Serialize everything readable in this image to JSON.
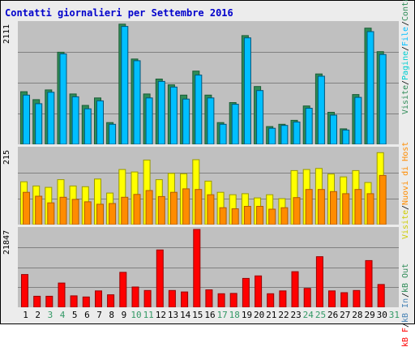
{
  "title": "Contatti giornalieri per Settembre 2016",
  "colors": {
    "title": "#0000cc",
    "visits": "#2e8b57",
    "pages": "#00ced1",
    "files": "#00bfff",
    "hits": "#ffff00",
    "hosts": "#ff8c00",
    "kb_in": "#4682b4",
    "kb_out": "#2e8b57",
    "kbf": "#ff0000",
    "weekend": "#339966",
    "weekday": "#000000"
  },
  "legend_top": [
    {
      "text": "Visite",
      "color": "#2e8b57"
    },
    {
      "text": " / ",
      "color": "#000000"
    },
    {
      "text": "Pagine",
      "color": "#00ced1"
    },
    {
      "text": " / ",
      "color": "#000000"
    },
    {
      "text": "File",
      "color": "#00bfff"
    },
    {
      "text": " / ",
      "color": "#000000"
    },
    {
      "text": "Contatti",
      "color": "#2e8b57"
    }
  ],
  "legend_mid": [
    {
      "text": "Visite",
      "color": "#cccc00"
    },
    {
      "text": " / ",
      "color": "#000000"
    },
    {
      "text": "Nuovi di Host",
      "color": "#ff8c00"
    }
  ],
  "legend_bottom": [
    {
      "text": "kB F",
      "color": "#ff0000"
    },
    {
      "text": " / ",
      "color": "#000000"
    },
    {
      "text": "kB In",
      "color": "#4682b4"
    },
    {
      "text": " / ",
      "color": "#000000"
    },
    {
      "text": "kB Out",
      "color": "#2e8b57"
    }
  ],
  "chart_data": {
    "type": "bar",
    "title": "Contatti giornalieri per Settembre 2016",
    "categories": [
      "1",
      "2",
      "3",
      "4",
      "5",
      "6",
      "7",
      "8",
      "9",
      "10",
      "11",
      "12",
      "13",
      "14",
      "15",
      "16",
      "17",
      "18",
      "19",
      "20",
      "21",
      "22",
      "23",
      "24",
      "25",
      "26",
      "27",
      "28",
      "29",
      "30",
      "31"
    ],
    "weekend_days": [
      "3",
      "4",
      "10",
      "11",
      "17",
      "18",
      "24",
      "25",
      "31"
    ],
    "panels": [
      {
        "name": "top",
        "ymax_label": "2111",
        "ylim": [
          0,
          2111
        ],
        "series": [
          {
            "name": "Visite",
            "values": [
              920,
              780,
              950,
              1610,
              880,
              680,
              810,
              380,
              2100,
              1490,
              880,
              1140,
              1040,
              860,
              1280,
              860,
              380,
              730,
              1900,
              1010,
              310,
              350,
              420,
              670,
              1230,
              560,
              270,
              870,
              2030,
              1620,
              0
            ]
          },
          {
            "name": "File",
            "values": [
              860,
              710,
              910,
              1580,
              830,
              620,
              760,
              350,
              2060,
              1460,
              810,
              1100,
              1000,
              790,
              1210,
              810,
              350,
              700,
              1860,
              940,
              280,
              330,
              390,
              630,
              1190,
              510,
              250,
              820,
              1970,
              1570,
              0
            ]
          }
        ]
      },
      {
        "name": "middle",
        "ymax_label": "215",
        "ylim": [
          0,
          215
        ],
        "series": [
          {
            "name": "Contatti",
            "values": [
              122,
              110,
              106,
              128,
              110,
              108,
              130,
              90,
              157,
              150,
              184,
              128,
              146,
              145,
              185,
              124,
              92,
              85,
              88,
              76,
              85,
              74,
              154,
              157,
              160,
              144,
              136,
              154,
              120,
              205,
              0
            ]
          },
          {
            "name": "Nuovi di Host",
            "values": [
              92,
              81,
              62,
              78,
              72,
              65,
              58,
              60,
              78,
              86,
              97,
              80,
              92,
              102,
              100,
              85,
              48,
              45,
              52,
              52,
              44,
              48,
              77,
              100,
              100,
              94,
              88,
              100,
              88,
              140,
              0
            ]
          }
        ]
      },
      {
        "name": "bottom",
        "ymax_label": "21847",
        "ylim": [
          0,
          21847
        ],
        "series": [
          {
            "name": "kB F",
            "values": [
              9200,
              3100,
              3100,
              6800,
              3200,
              2900,
              4600,
              3500,
              9800,
              5700,
              4700,
              16100,
              4700,
              4300,
              21847,
              4900,
              3800,
              3900,
              8100,
              8800,
              3800,
              4600,
              10000,
              5300,
              14200,
              4600,
              4100,
              4700,
              13100,
              6400,
              0
            ]
          }
        ]
      }
    ]
  }
}
